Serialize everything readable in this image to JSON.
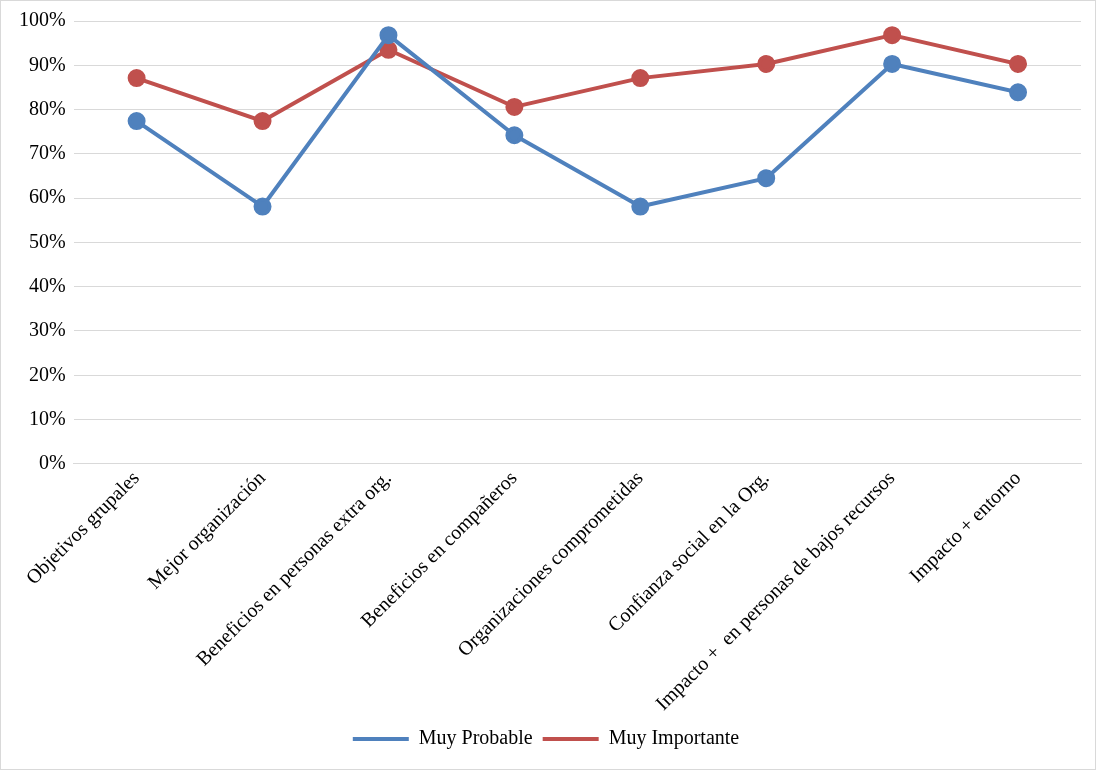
{
  "chart_data": {
    "type": "line",
    "categories": [
      "Objetivos grupales",
      "Mejor organización",
      "Beneficios en personas extra org.",
      "Beneficios en compañeros",
      "Organizaciones comprometidas",
      "Confianza social en la Org.",
      "Impacto +  en personas de bajos recursos",
      "Impacto + entorno"
    ],
    "series": [
      {
        "name": "Muy Probable",
        "color": "#4f81bd",
        "values": [
          77.4,
          58.1,
          96.8,
          74.2,
          58.1,
          64.5,
          90.3,
          83.9
        ]
      },
      {
        "name": "Muy Importante",
        "color": "#c0504d",
        "values": [
          87.1,
          77.4,
          93.5,
          80.6,
          87.1,
          90.3,
          96.8,
          90.3
        ]
      }
    ],
    "ylim": [
      0,
      100
    ],
    "yticks": [
      {
        "value": 0,
        "label": "0%"
      },
      {
        "value": 10,
        "label": "10%"
      },
      {
        "value": 20,
        "label": "20%"
      },
      {
        "value": 30,
        "label": "30%"
      },
      {
        "value": 40,
        "label": "40%"
      },
      {
        "value": 50,
        "label": "50%"
      },
      {
        "value": 60,
        "label": "60%"
      },
      {
        "value": 70,
        "label": "70%"
      },
      {
        "value": 80,
        "label": "80%"
      },
      {
        "value": 90,
        "label": "90%"
      },
      {
        "value": 100,
        "label": "100%"
      }
    ],
    "grid": "y",
    "legend": "bottom",
    "marker": "circle",
    "line_style": "solid"
  }
}
